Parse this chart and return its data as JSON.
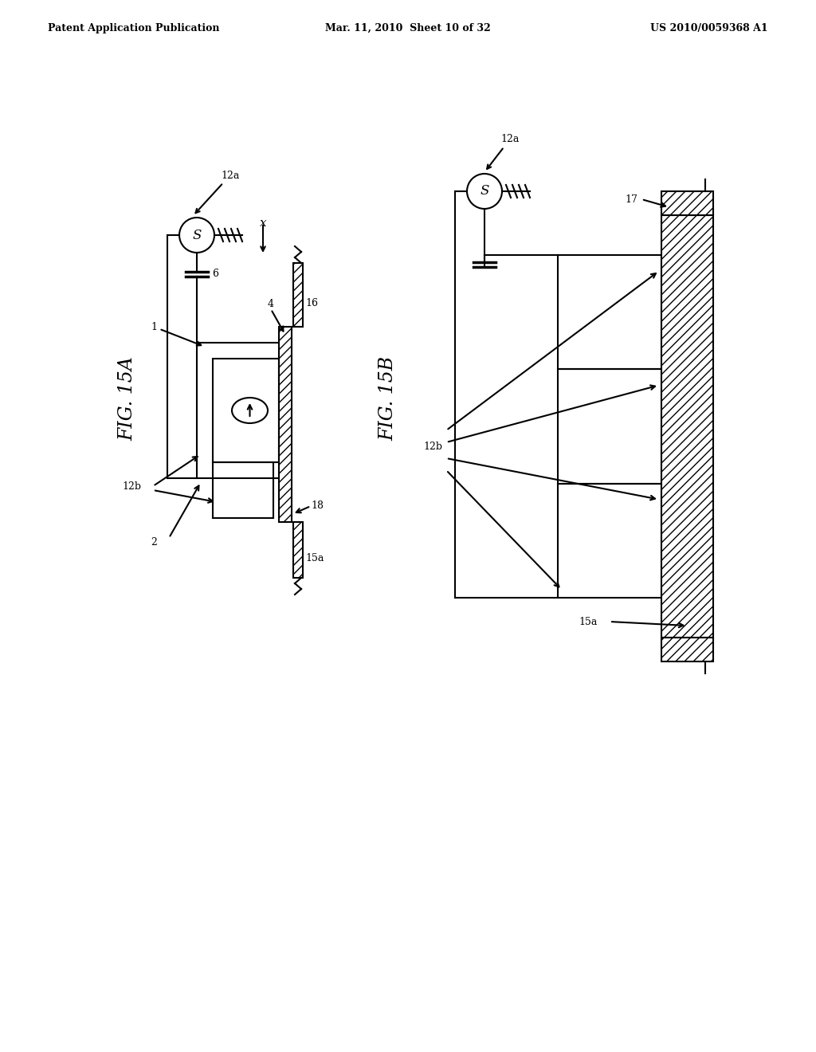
{
  "bg_color": "#ffffff",
  "line_color": "#000000",
  "header_left": "Patent Application Publication",
  "header_center": "Mar. 11, 2010  Sheet 10 of 32",
  "header_right": "US 2010/0059368 A1",
  "lw": 1.5,
  "lw_thick": 2.5
}
